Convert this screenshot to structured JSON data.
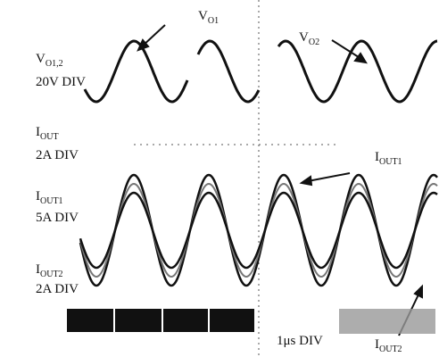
{
  "labels": [
    {
      "main": "V",
      "sub": "O1"
    },
    {
      "main": "V",
      "sub": "O2"
    },
    {
      "main": "V",
      "sub": "O1,2"
    },
    {
      "main": "20V DIV"
    },
    {
      "main": "I",
      "sub": "OUT"
    },
    {
      "main": "2A DIV"
    },
    {
      "main": "I",
      "sub": "OUT1"
    },
    {
      "main": "I",
      "sub": "OUT1"
    },
    {
      "main": "5A DIV"
    },
    {
      "main": "I",
      "sub": "OUT2"
    },
    {
      "main": "2A DIV"
    },
    {
      "main": "1μs DIV"
    },
    {
      "main": "I",
      "sub": "OUT2"
    }
  ]
}
